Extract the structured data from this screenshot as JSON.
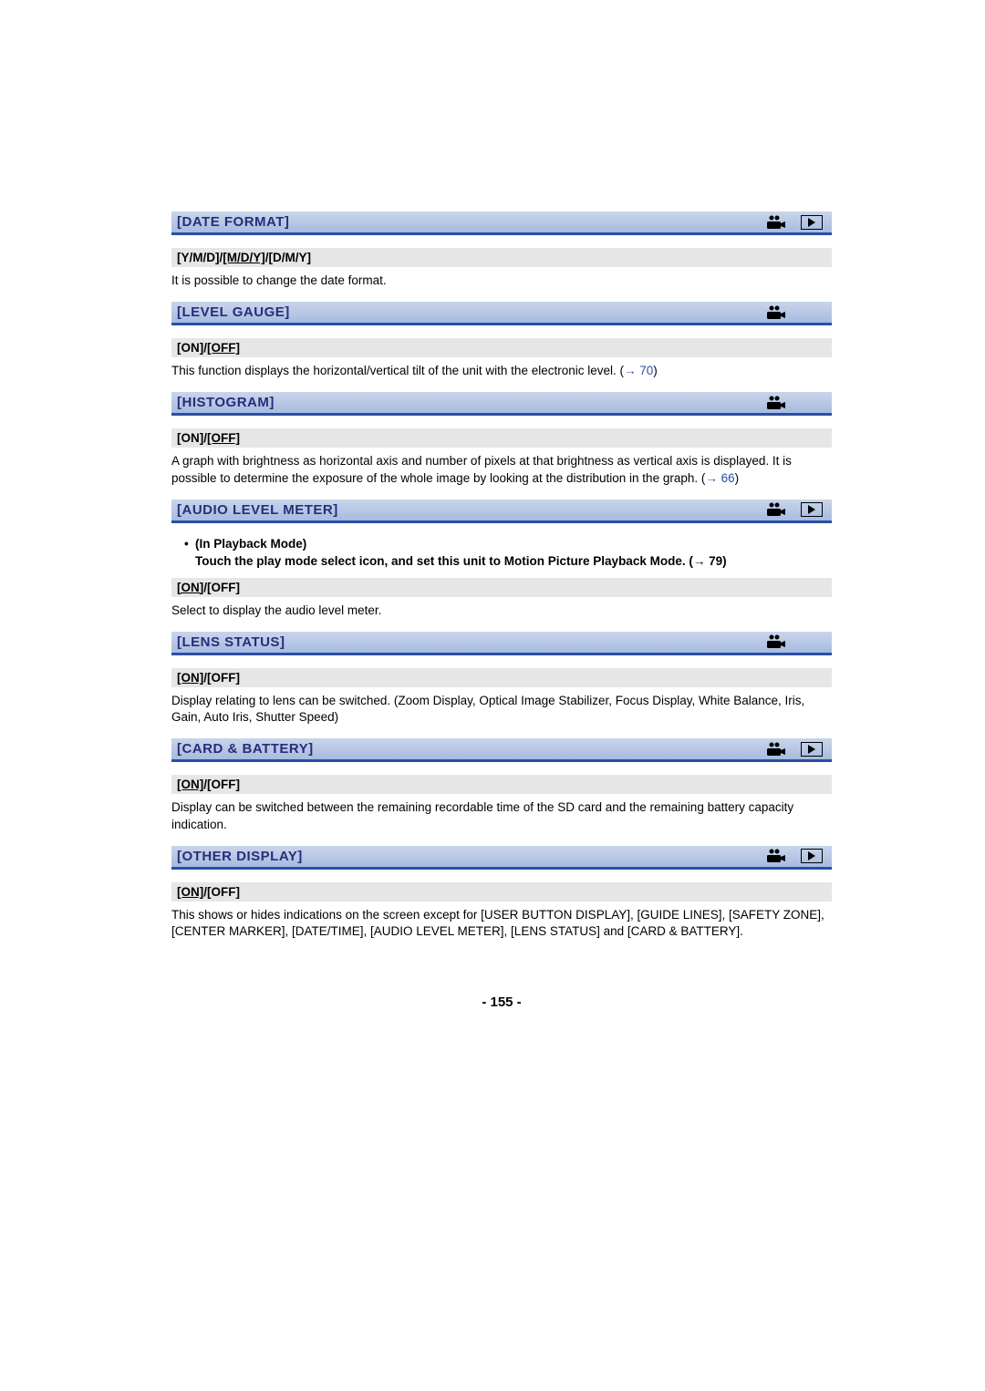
{
  "page_number": "- 155 -",
  "colors": {
    "header_gradient_top": "#c9d5ea",
    "header_gradient_bottom": "#a7bbe0",
    "header_border": "#2a4fa3",
    "header_text": "#262e7a",
    "option_bg": "#e6e6e6",
    "link": "#2a4fa3",
    "body_text": "#000000",
    "background": "#ffffff"
  },
  "sections": {
    "date_format": {
      "title": "[DATE FORMAT]",
      "show_cam_icon": true,
      "show_play_icon": true,
      "options_html": "[Y/M/D]/<u>[M/D/Y]</u>/[D/M/Y]",
      "desc": "It is possible to change the date format."
    },
    "level_gauge": {
      "title": "[LEVEL GAUGE]",
      "show_cam_icon": true,
      "show_play_icon": false,
      "options_html": "[ON]/<u>[OFF]</u>",
      "desc_pre": "This function displays the horizontal/vertical tilt of the unit with the electronic level. (",
      "ref": "70",
      "desc_post": ")"
    },
    "histogram": {
      "title": "[HISTOGRAM]",
      "show_cam_icon": true,
      "show_play_icon": false,
      "options_html": "[ON]/<u>[OFF]</u>",
      "desc_pre": "A graph with brightness as horizontal axis and number of pixels at that brightness as vertical axis is displayed. It is possible to determine the exposure of the whole image by looking at the distribution in the graph. (",
      "ref": "66",
      "desc_post": ")"
    },
    "audio_level_meter": {
      "title": "[AUDIO LEVEL METER]",
      "show_cam_icon": true,
      "show_play_icon": true,
      "bullet_title": "In Playback Mode)",
      "bullet_sub_pre": "Touch the play mode select icon, and set this unit to Motion Picture Playback Mode. (",
      "bullet_ref": "79",
      "bullet_sub_post": ")",
      "options_html": "<u>[ON]</u>/[OFF]",
      "desc": "Select to display the audio level meter."
    },
    "lens_status": {
      "title": "[LENS STATUS]",
      "show_cam_icon": true,
      "show_play_icon": false,
      "options_html": "<u>[ON]</u>/[OFF]",
      "desc": "Display relating to lens can be switched. (Zoom Display, Optical Image Stabilizer, Focus Display, White Balance, Iris, Gain, Auto Iris, Shutter Speed)"
    },
    "card_battery": {
      "title": "[CARD & BATTERY]",
      "show_cam_icon": true,
      "show_play_icon": true,
      "options_html": "<u>[ON]</u>/[OFF]",
      "desc": "Display can be switched between the remaining recordable time of the SD card and the remaining battery capacity indication."
    },
    "other_display": {
      "title": "[OTHER DISPLAY]",
      "show_cam_icon": true,
      "show_play_icon": true,
      "options_html": "<u>[ON]</u>/[OFF]",
      "desc": "This shows or hides indications on the screen except for [USER BUTTON DISPLAY], [GUIDE LINES], [SAFETY ZONE], [CENTER MARKER], [DATE/TIME], [AUDIO LEVEL METER], [LENS STATUS] and [CARD & BATTERY]."
    }
  }
}
